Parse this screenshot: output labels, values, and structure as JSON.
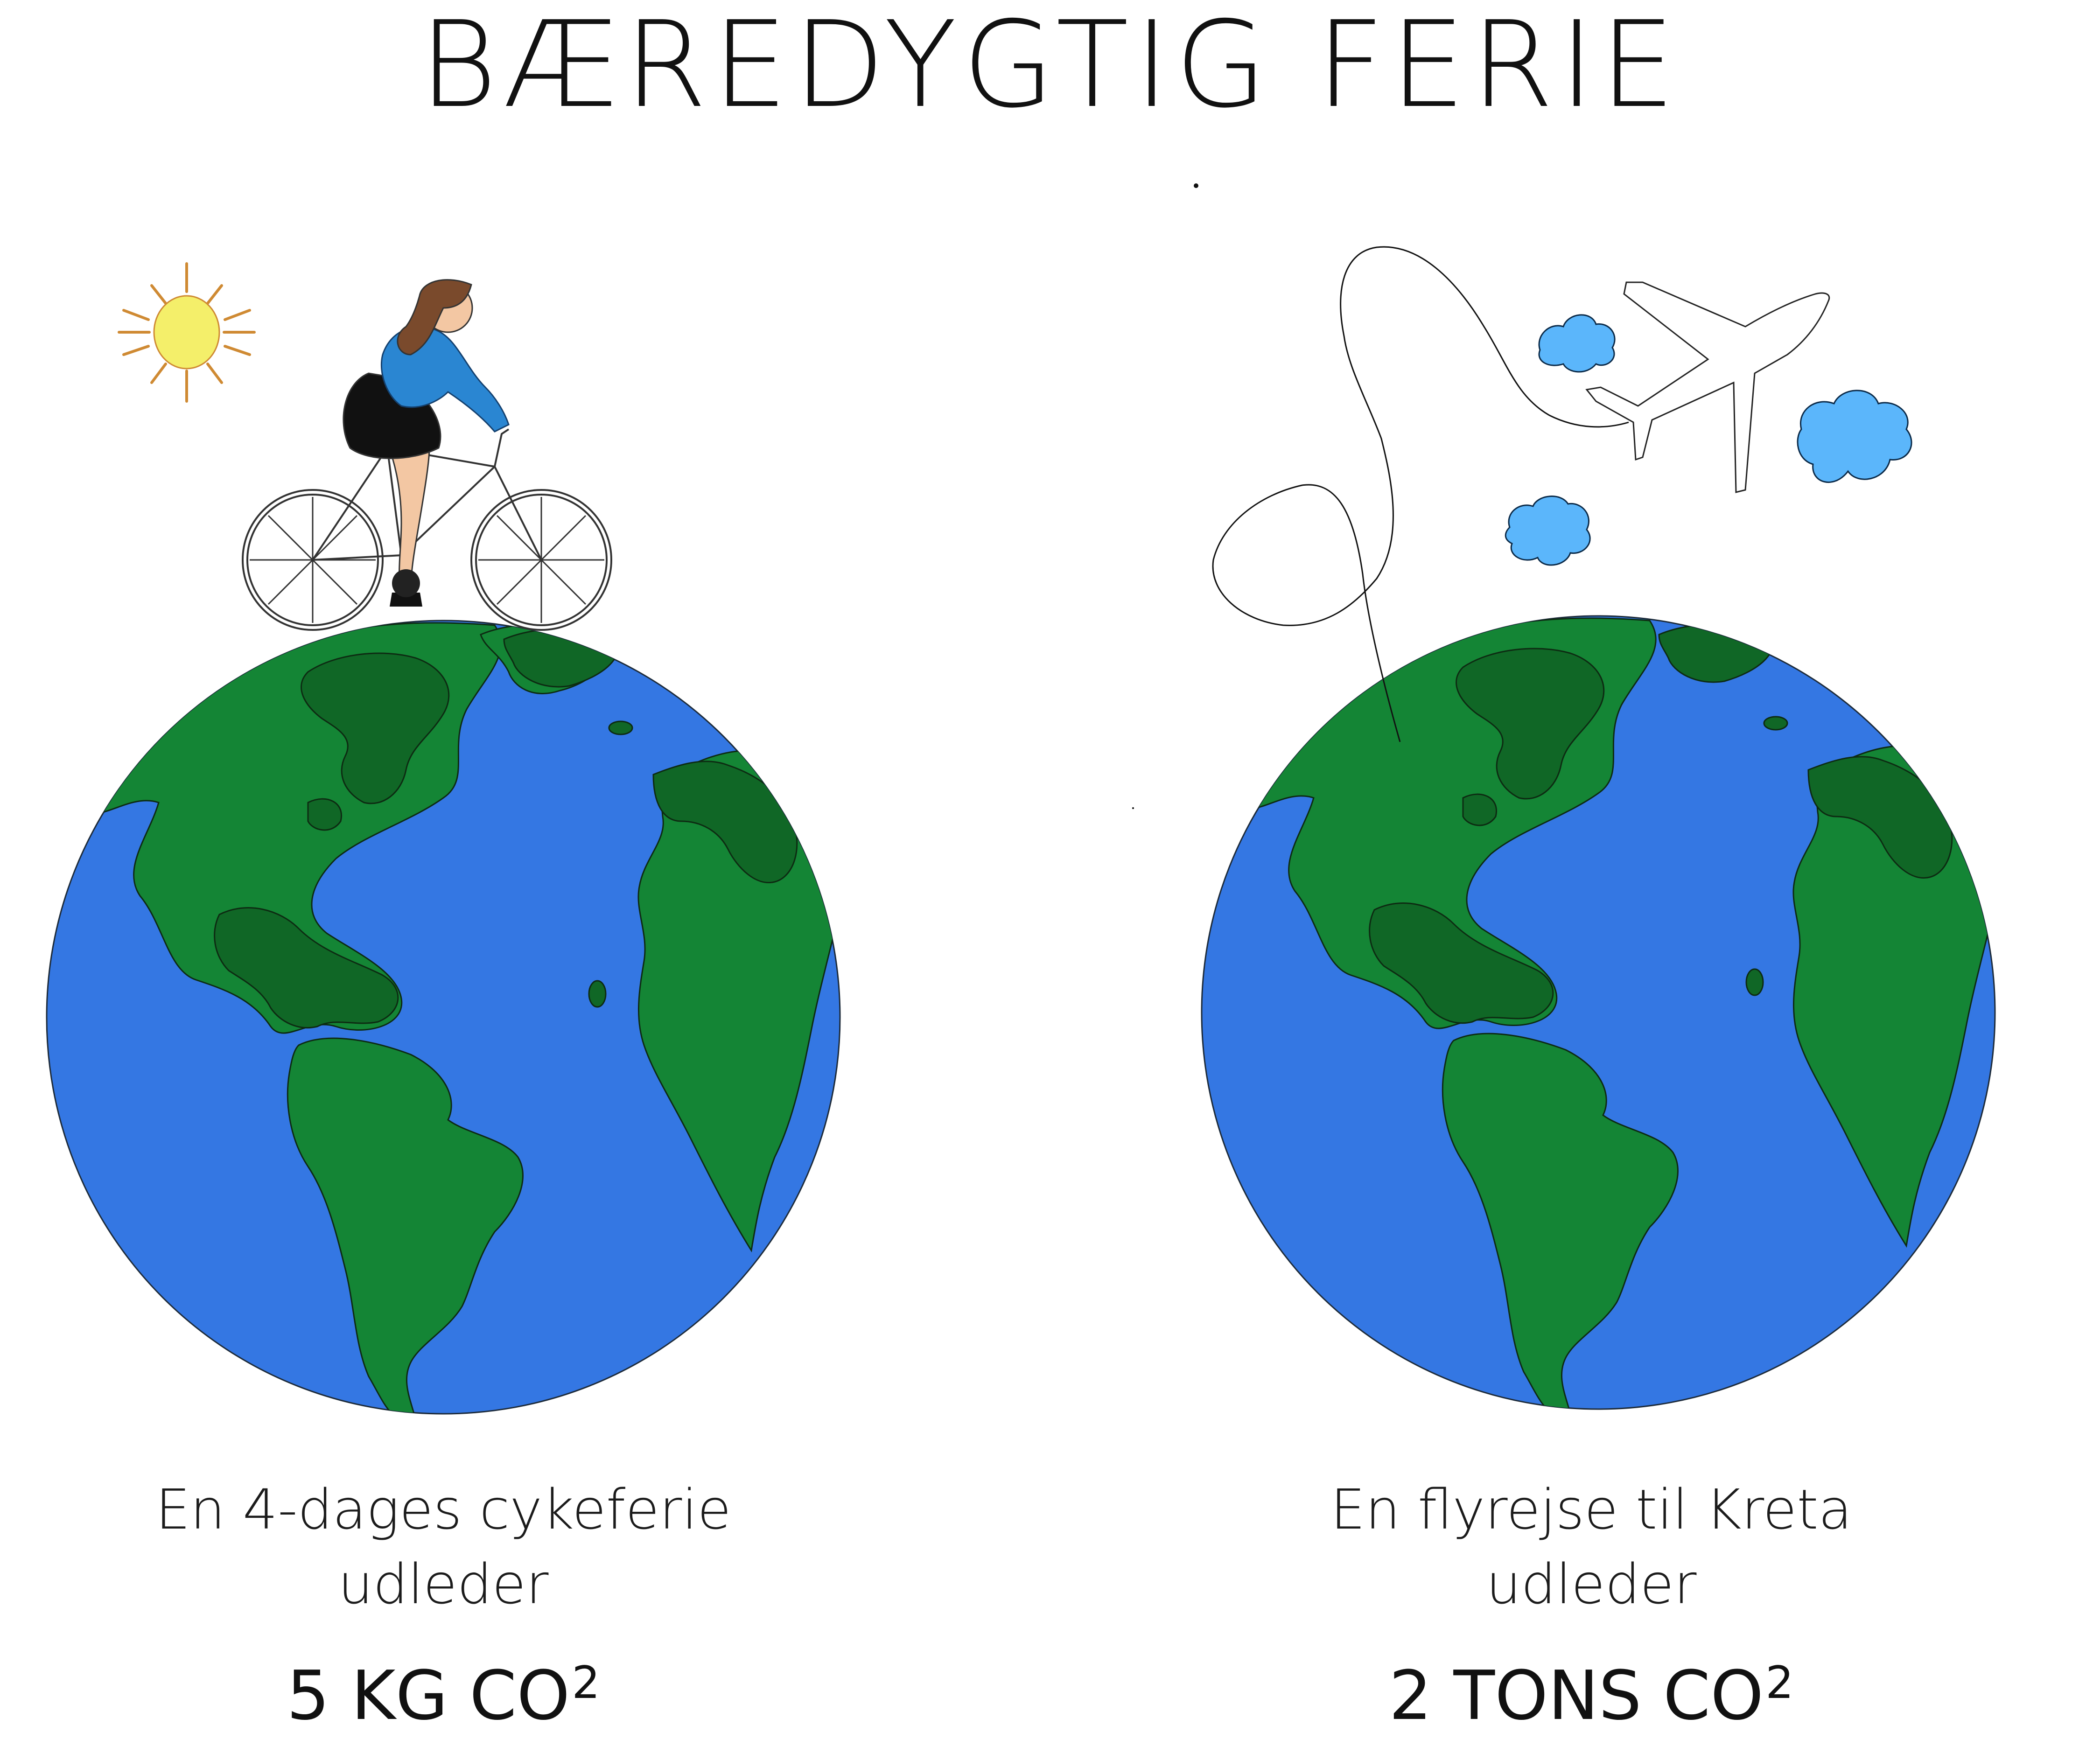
{
  "title": "BÆREDYGTIG FERIE",
  "left": {
    "caption_line1": "En 4-dages cykeferie",
    "caption_line2": "udleder",
    "amount_value": "5 KG CO",
    "amount_sup": "2"
  },
  "right": {
    "caption_line1": "En flyrejse til Kreta",
    "caption_line2": "udleder",
    "amount_value": "2 TONS CO",
    "amount_sup": "2"
  },
  "colors": {
    "ocean": "#3477e3",
    "land": "#148535",
    "land_dark": "#106726",
    "sun": "#f4ef6a",
    "sun_rays": "#cf8a33",
    "cloud": "#5bb6fb",
    "jacket": "#2a86d2"
  }
}
